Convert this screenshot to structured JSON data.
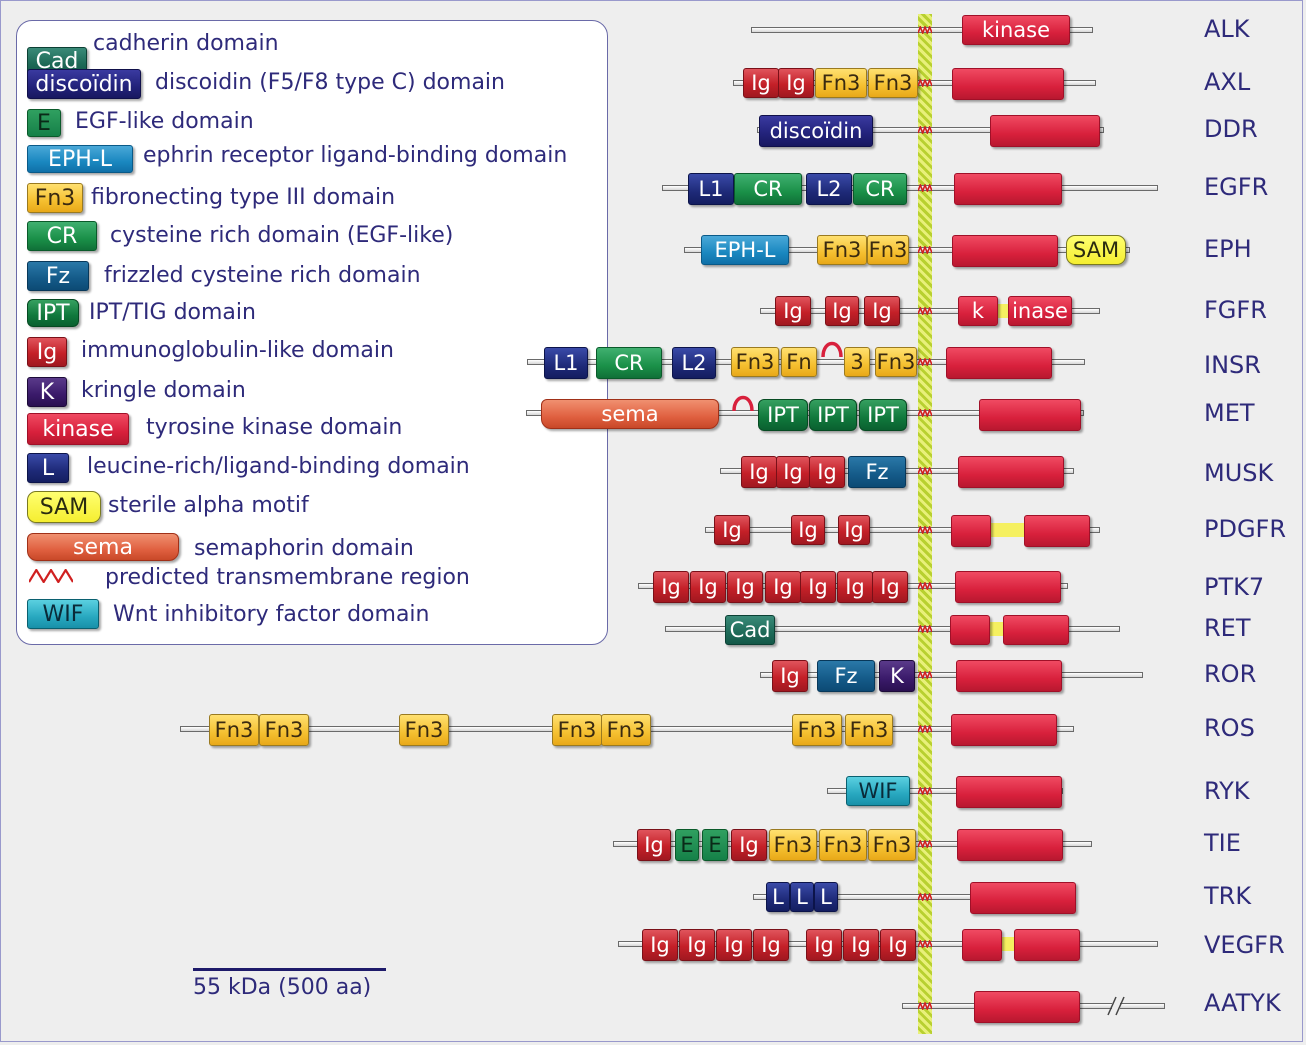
{
  "legend": [
    {
      "label": "Cad",
      "text": "cadherin domain",
      "icon": "cad"
    },
    {
      "label": "discoïdin",
      "text": "discoidin (F5/F8 type C) domain",
      "icon": "disc"
    },
    {
      "label": "E",
      "text": "EGF-like domain",
      "icon": "E"
    },
    {
      "label": "EPH-L",
      "text": "ephrin receptor ligand-binding domain",
      "icon": "EPH"
    },
    {
      "label": "Fn3",
      "text": "fibronecting type III domain",
      "icon": "fn3"
    },
    {
      "label": "CR",
      "text": "cysteine rich domain (EGF-like)",
      "icon": "CR"
    },
    {
      "label": "Fz",
      "text": "frizzled cysteine rich domain",
      "icon": "Fz"
    },
    {
      "label": "IPT",
      "text": "IPT/TIG domain",
      "icon": "IPT"
    },
    {
      "label": "Ig",
      "text": "immunoglobulin-like domain",
      "icon": "ig"
    },
    {
      "label": "K",
      "text": "kringle domain",
      "icon": "K"
    },
    {
      "label": "kinase",
      "text": "tyrosine kinase domain",
      "icon": "kin"
    },
    {
      "label": "L",
      "text": "leucine-rich/ligand-binding domain",
      "icon": "L"
    },
    {
      "label": "SAM",
      "text": "sterile alpha motif",
      "icon": "SAM"
    },
    {
      "label": "sema",
      "text": "semaphorin domain",
      "icon": "sema"
    },
    {
      "label": "",
      "text": "predicted transmembrane region",
      "icon": "tm"
    },
    {
      "label": "WIF",
      "text": "Wnt inhibitory factor domain",
      "icon": "WIF"
    }
  ],
  "scale_label": "55 kDa (500 aa)",
  "proteins": [
    {
      "name": "ALK",
      "domains": [
        {
          "type": "kin",
          "label": "kinase"
        }
      ]
    },
    {
      "name": "AXL",
      "domains": [
        {
          "type": "ig",
          "label": "Ig"
        },
        {
          "type": "ig",
          "label": "Ig"
        },
        {
          "type": "fn3",
          "label": "Fn3"
        },
        {
          "type": "fn3",
          "label": "Fn3"
        },
        {
          "type": "kin",
          "label": ""
        }
      ]
    },
    {
      "name": "DDR",
      "domains": [
        {
          "type": "disc",
          "label": "discoïdin"
        },
        {
          "type": "kin",
          "label": ""
        }
      ]
    },
    {
      "name": "EGFR",
      "domains": [
        {
          "type": "L",
          "label": "L1"
        },
        {
          "type": "CR",
          "label": "CR"
        },
        {
          "type": "L",
          "label": "L2"
        },
        {
          "type": "CR",
          "label": "CR"
        },
        {
          "type": "kin",
          "label": ""
        }
      ]
    },
    {
      "name": "EPH",
      "domains": [
        {
          "type": "EPH",
          "label": "EPH-L"
        },
        {
          "type": "fn3",
          "label": "Fn3"
        },
        {
          "type": "fn3",
          "label": "Fn3"
        },
        {
          "type": "kin",
          "label": ""
        },
        {
          "type": "SAM",
          "label": "SAM"
        }
      ]
    },
    {
      "name": "FGFR",
      "domains": [
        {
          "type": "ig",
          "label": "Ig"
        },
        {
          "type": "ig",
          "label": "Ig"
        },
        {
          "type": "ig",
          "label": "Ig"
        },
        {
          "type": "kin",
          "label": "k"
        },
        {
          "type": "kin",
          "label": "inase"
        }
      ]
    },
    {
      "name": "INSR",
      "domains": [
        {
          "type": "L",
          "label": "L1"
        },
        {
          "type": "CR",
          "label": "CR"
        },
        {
          "type": "L",
          "label": "L2"
        },
        {
          "type": "fn3",
          "label": "Fn3"
        },
        {
          "type": "fn3",
          "label": "Fn"
        },
        {
          "type": "fn3",
          "label": "3"
        },
        {
          "type": "fn3",
          "label": "Fn3"
        },
        {
          "type": "kin",
          "label": ""
        }
      ]
    },
    {
      "name": "MET",
      "domains": [
        {
          "type": "sema",
          "label": "sema"
        },
        {
          "type": "IPT",
          "label": "IPT"
        },
        {
          "type": "IPT",
          "label": "IPT"
        },
        {
          "type": "IPT",
          "label": "IPT"
        },
        {
          "type": "kin",
          "label": ""
        }
      ]
    },
    {
      "name": "MUSK",
      "domains": [
        {
          "type": "ig",
          "label": "Ig"
        },
        {
          "type": "ig",
          "label": "Ig"
        },
        {
          "type": "ig",
          "label": "Ig"
        },
        {
          "type": "Fz",
          "label": "Fz"
        },
        {
          "type": "kin",
          "label": ""
        }
      ]
    },
    {
      "name": "PDGFR",
      "domains": [
        {
          "type": "ig",
          "label": "Ig"
        },
        {
          "type": "ig",
          "label": "Ig"
        },
        {
          "type": "ig",
          "label": "Ig"
        },
        {
          "type": "kin",
          "label": ""
        },
        {
          "type": "kin",
          "label": ""
        }
      ]
    },
    {
      "name": "PTK7",
      "domains": [
        {
          "type": "ig",
          "label": "Ig"
        },
        {
          "type": "ig",
          "label": "Ig"
        },
        {
          "type": "ig",
          "label": "Ig"
        },
        {
          "type": "ig",
          "label": "Ig"
        },
        {
          "type": "ig",
          "label": "Ig"
        },
        {
          "type": "ig",
          "label": "Ig"
        },
        {
          "type": "ig",
          "label": "Ig"
        },
        {
          "type": "kin",
          "label": ""
        }
      ]
    },
    {
      "name": "RET",
      "domains": [
        {
          "type": "cad",
          "label": "Cad"
        },
        {
          "type": "kin",
          "label": ""
        },
        {
          "type": "kin",
          "label": ""
        }
      ]
    },
    {
      "name": "ROR",
      "domains": [
        {
          "type": "ig",
          "label": "Ig"
        },
        {
          "type": "Fz",
          "label": "Fz"
        },
        {
          "type": "K",
          "label": "K"
        },
        {
          "type": "kin",
          "label": ""
        }
      ]
    },
    {
      "name": "ROS",
      "domains": [
        {
          "type": "fn3",
          "label": "Fn3"
        },
        {
          "type": "fn3",
          "label": "Fn3"
        },
        {
          "type": "fn3",
          "label": "Fn3"
        },
        {
          "type": "fn3",
          "label": "Fn3"
        },
        {
          "type": "fn3",
          "label": "Fn3"
        },
        {
          "type": "fn3",
          "label": "Fn3"
        },
        {
          "type": "fn3",
          "label": "Fn3"
        },
        {
          "type": "kin",
          "label": ""
        }
      ]
    },
    {
      "name": "RYK",
      "domains": [
        {
          "type": "WIF",
          "label": "WIF"
        },
        {
          "type": "kin",
          "label": ""
        }
      ]
    },
    {
      "name": "TIE",
      "domains": [
        {
          "type": "ig",
          "label": "Ig"
        },
        {
          "type": "E",
          "label": "E"
        },
        {
          "type": "E",
          "label": "E"
        },
        {
          "type": "ig",
          "label": "Ig"
        },
        {
          "type": "fn3",
          "label": "Fn3"
        },
        {
          "type": "fn3",
          "label": "Fn3"
        },
        {
          "type": "fn3",
          "label": "Fn3"
        },
        {
          "type": "kin",
          "label": ""
        }
      ]
    },
    {
      "name": "TRK",
      "domains": [
        {
          "type": "L",
          "label": "L"
        },
        {
          "type": "L",
          "label": "L"
        },
        {
          "type": "L",
          "label": "L"
        },
        {
          "type": "kin",
          "label": ""
        }
      ]
    },
    {
      "name": "VEGFR",
      "domains": [
        {
          "type": "ig",
          "label": "Ig"
        },
        {
          "type": "ig",
          "label": "Ig"
        },
        {
          "type": "ig",
          "label": "Ig"
        },
        {
          "type": "ig",
          "label": "Ig"
        },
        {
          "type": "ig",
          "label": "Ig"
        },
        {
          "type": "ig",
          "label": "Ig"
        },
        {
          "type": "ig",
          "label": "Ig"
        },
        {
          "type": "kin",
          "label": ""
        },
        {
          "type": "kin",
          "label": ""
        }
      ]
    },
    {
      "name": "AATYK",
      "domains": [
        {
          "type": "kin",
          "label": ""
        }
      ]
    }
  ],
  "colors": {
    "text": "#2e2a7a",
    "kinase": "#d8203c",
    "ig": "#c42028",
    "fn3": "#f5c030",
    "membrane": "#c8dc40",
    "transmembrane": "#d02020"
  }
}
